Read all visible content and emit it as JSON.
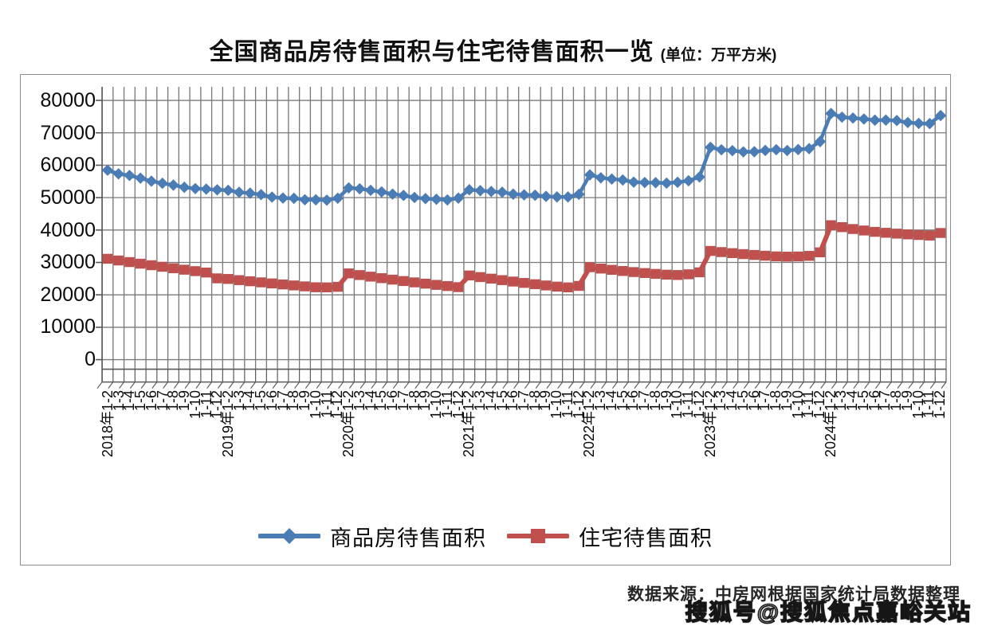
{
  "title": {
    "main": "全国商品房待售面积与住宅待售面积一览",
    "unit": "(单位：万平方米)"
  },
  "source_note": "数据来源：中房网根据国家统计局数据整理",
  "watermark": "搜狐号@搜狐焦点嘉峪关站",
  "colors": {
    "commercial_blue": "#4a7cb5",
    "residential_red": "#c0504d",
    "gridline_gray": "#7a7a7a",
    "axis_gray": "#595959",
    "border_gray": "#8d8d8d"
  },
  "legend": [
    {
      "label": "商品房待售面积",
      "color": "#4a7cb5",
      "marker": "diamond"
    },
    {
      "label": "住宅待售面积",
      "color": "#c0504d",
      "marker": "square"
    }
  ],
  "chart_data": {
    "type": "line",
    "title": "全国商品房待售面积与住宅待售面积一览（单位：万平方米）",
    "xlabel": "",
    "ylabel": "万平方米",
    "ylim": [
      0,
      80000
    ],
    "ytick_step": 10000,
    "yticks": [
      80000,
      70000,
      60000,
      50000,
      40000,
      30000,
      20000,
      10000,
      0
    ],
    "grid": "both",
    "legend_position": "bottom",
    "categories": [
      "2018年1-2",
      "1-3",
      "1-4",
      "1-5",
      "1-6",
      "1-7",
      "1-8",
      "1-9",
      "1-10",
      "1-11",
      "1-12",
      "2019年1-2",
      "1-3",
      "1-4",
      "1-5",
      "1-6",
      "1-7",
      "1-8",
      "1-9",
      "1-10",
      "1-11",
      "1-12",
      "2020年1-2",
      "1-3",
      "1-4",
      "1-5",
      "1-6",
      "1-7",
      "1-8",
      "1-9",
      "1-10",
      "1-11",
      "1-12",
      "2021年1-2",
      "1-3",
      "1-4",
      "1-5",
      "1-6",
      "1-7",
      "1-8",
      "1-9",
      "1-10",
      "1-11",
      "1-12",
      "2022年1-2",
      "1-3",
      "1-4",
      "1-5",
      "1-6",
      "1-7",
      "1-8",
      "1-9",
      "1-10",
      "1-11",
      "1-12",
      "2023年1-2",
      "1-3",
      "1-4",
      "1-5",
      "1-6",
      "1-7",
      "1-8",
      "1-9",
      "1-10",
      "1-11",
      "1-12",
      "2024年1-2",
      "1-3",
      "1-4",
      "1-5",
      "1-6",
      "1-7",
      "1-8",
      "1-9",
      "1-10",
      "1-11",
      "1-12"
    ],
    "series": [
      {
        "name": "商品房待售面积",
        "color": "#4a7cb5",
        "marker": "diamond",
        "values": [
          58468,
          57329,
          56838,
          56010,
          55083,
          54428,
          53873,
          53191,
          52789,
          52627,
          52414,
          52251,
          51646,
          51380,
          50928,
          50162,
          49876,
          49784,
          49346,
          49323,
          49221,
          49821,
          52999,
          52726,
          52255,
          51773,
          51083,
          50682,
          50052,
          49707,
          49492,
          49287,
          49850,
          52425,
          52151,
          51898,
          51674,
          51075,
          50864,
          50738,
          50385,
          50215,
          50205,
          51023,
          57026,
          56113,
          55734,
          55433,
          54784,
          54655,
          54605,
          54467,
          54734,
          55203,
          56366,
          65528,
          64770,
          64487,
          64120,
          64159,
          64564,
          64795,
          64537,
          64835,
          65118,
          67295,
          75969,
          74833,
          74553,
          74256,
          73894,
          73926,
          73784,
          73177,
          72909,
          72835,
          75327
        ]
      },
      {
        "name": "住宅待售面积",
        "color": "#c0504d",
        "marker": "square",
        "values": [
          31129,
          30613,
          30111,
          29620,
          29139,
          28669,
          28209,
          27759,
          27319,
          26889,
          25091,
          24906,
          24543,
          24192,
          23853,
          23526,
          23211,
          22908,
          22617,
          22338,
          22303,
          22473,
          26617,
          26108,
          25618,
          25147,
          24695,
          24262,
          23848,
          23453,
          23077,
          22720,
          22379,
          25980,
          25480,
          25000,
          24540,
          24100,
          23680,
          23280,
          22900,
          22540,
          22300,
          22761,
          28522,
          28104,
          27716,
          27358,
          27030,
          26732,
          26464,
          26226,
          26118,
          26340,
          26947,
          33552,
          33196,
          32870,
          32574,
          32308,
          32072,
          31866,
          31790,
          31844,
          32028,
          33119,
          41495,
          40886,
          40307,
          39858,
          39439,
          39150,
          38891,
          38662,
          38463,
          38294,
          39088
        ]
      }
    ]
  }
}
